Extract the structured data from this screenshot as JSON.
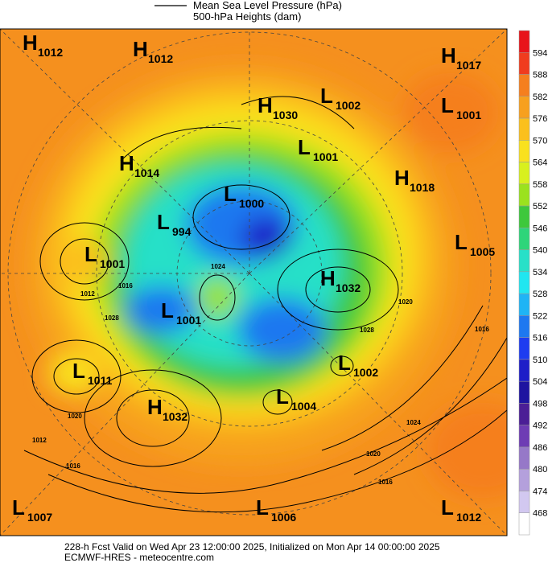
{
  "header": {
    "line1": "Mean Sea Level Pressure (hPa)",
    "line2": "500-hPa Heights (dam)"
  },
  "centers": [
    {
      "letter": "H",
      "value": 1012
    },
    {
      "letter": "H",
      "value": 1012
    },
    {
      "letter": "H",
      "value": 1017
    },
    {
      "letter": "H",
      "value": 1030
    },
    {
      "letter": "L",
      "value": 1002
    },
    {
      "letter": "L",
      "value": 1001
    },
    {
      "letter": "L",
      "value": 1001
    },
    {
      "letter": "H",
      "value": 1014
    },
    {
      "letter": "H",
      "value": 1018
    },
    {
      "letter": "L",
      "value": 1000
    },
    {
      "letter": "L",
      "value": 994
    },
    {
      "letter": "L",
      "value": 1001
    },
    {
      "letter": "L",
      "value": 1005
    },
    {
      "letter": "H",
      "value": 1032
    },
    {
      "letter": "L",
      "value": 1001
    },
    {
      "letter": "L",
      "value": 1011
    },
    {
      "letter": "L",
      "value": 1002
    },
    {
      "letter": "L",
      "value": 1004
    },
    {
      "letter": "H",
      "value": 1032
    },
    {
      "letter": "L",
      "value": 1007
    },
    {
      "letter": "L",
      "value": 1006
    },
    {
      "letter": "L",
      "value": 1012
    }
  ],
  "contour_labels": [
    1012,
    1016,
    1024,
    1028,
    1020,
    1016,
    1024,
    1020,
    1016,
    1012,
    1016,
    1020,
    1028
  ],
  "colorbar": {
    "levels": [
      594,
      588,
      582,
      576,
      570,
      564,
      558,
      552,
      546,
      540,
      534,
      528,
      522,
      516,
      510,
      504,
      498,
      492,
      486,
      480,
      474,
      468
    ],
    "colors": [
      "#e8141a",
      "#f03c1e",
      "#f57f1e",
      "#f7a01e",
      "#fbc01d",
      "#f9e11e",
      "#d8f01e",
      "#9be21e",
      "#3ec83c",
      "#2ed57a",
      "#28e0c8",
      "#20e6f0",
      "#1fb4f5",
      "#1e78f0",
      "#1e3cf0",
      "#1e1ec8",
      "#1e14a0",
      "#4b1e96",
      "#6e3cb4",
      "#9678c8",
      "#b4a0dc",
      "#d2c8f0",
      "#ffffff"
    ]
  },
  "footer": {
    "line1": "228-h Fcst Valid on Wed Apr 23 12:00:00 2025, Initialized on Mon Apr 14 00:00:00 2025",
    "line2": "ECMWF-HRES  - meteocentre.com"
  }
}
